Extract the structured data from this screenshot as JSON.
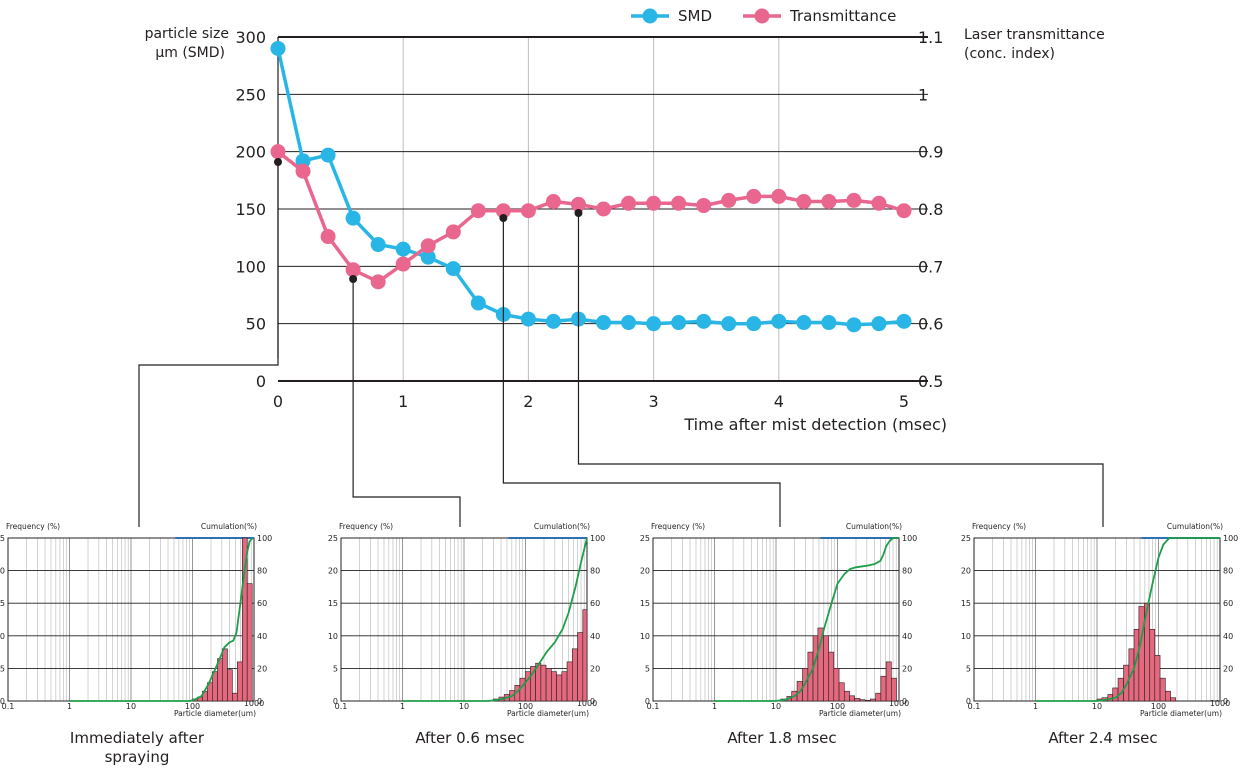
{
  "chart_data": [
    {
      "type": "line",
      "xlabel": "Time after mist detection (msec)",
      "ylabel": [
        "particle size",
        "µm (SMD)"
      ],
      "y2label": [
        "Laser transmittance",
        "(conc. index)"
      ],
      "xlim": [
        0,
        5
      ],
      "ylim": [
        0,
        300
      ],
      "y2lim": [
        0.5,
        1.1
      ],
      "xticks": [
        "0",
        "1",
        "2",
        "3",
        "4",
        "5"
      ],
      "yticks": [
        "0",
        "50",
        "100",
        "150",
        "200",
        "250",
        "300"
      ],
      "y2ticks": [
        "0.5",
        "0.6",
        "0.7",
        "0.8",
        "0.9",
        "1",
        "1.1"
      ],
      "grid": true,
      "legend_position": "top-right",
      "series": [
        {
          "name": "SMD",
          "axis": "left",
          "color": "#29b6e6",
          "x": [
            0,
            0.2,
            0.4,
            0.6,
            0.8,
            1.0,
            1.2,
            1.4,
            1.6,
            1.8,
            2.0,
            2.2,
            2.4,
            2.6,
            2.8,
            3.0,
            3.2,
            3.4,
            3.6,
            3.8,
            4.0,
            4.2,
            4.4,
            4.6,
            4.8,
            5.0
          ],
          "values": [
            290,
            192,
            197,
            142,
            119,
            115,
            108,
            98,
            68,
            58,
            54,
            52,
            54,
            51,
            51,
            50,
            51,
            52,
            50,
            50,
            52,
            51,
            51,
            49,
            50,
            52
          ]
        },
        {
          "name": "Transmittance",
          "axis": "right",
          "color": "#e9668e",
          "x": [
            0,
            0.2,
            0.4,
            0.6,
            0.8,
            1.0,
            1.2,
            1.4,
            1.6,
            1.8,
            2.0,
            2.2,
            2.4,
            2.6,
            2.8,
            3.0,
            3.2,
            3.4,
            3.6,
            3.8,
            4.0,
            4.2,
            4.4,
            4.6,
            4.8,
            5.0
          ],
          "values": [
            0.9,
            0.866,
            0.752,
            0.694,
            0.673,
            0.704,
            0.736,
            0.76,
            0.797,
            0.797,
            0.797,
            0.813,
            0.808,
            0.8,
            0.81,
            0.81,
            0.81,
            0.806,
            0.815,
            0.822,
            0.822,
            0.813,
            0.813,
            0.815,
            0.81,
            0.797
          ]
        }
      ],
      "markers": [
        {
          "x": 0,
          "target_panel": 0
        },
        {
          "x": 0.6,
          "target_panel": 1
        },
        {
          "x": 1.8,
          "target_panel": 2
        },
        {
          "x": 2.4,
          "target_panel": 3
        }
      ]
    },
    {
      "type": "bar",
      "panel": "Immediately after spraying",
      "caption": [
        "Immediately after",
        "spraying"
      ],
      "ylabel": "Frequency (%)",
      "y2label": "Cumulation(%)",
      "xlabel": "Particle diameter(um)",
      "xscale": "log",
      "xlim": [
        0.1,
        1000
      ],
      "ylim": [
        0,
        25
      ],
      "y2lim": [
        0,
        100
      ],
      "xticks": [
        "0.1",
        "1",
        "10",
        "100",
        "1000"
      ],
      "yticks": [
        "0",
        "5",
        "10",
        "15",
        "20",
        "25"
      ],
      "y2ticks": [
        "0",
        "20",
        "40",
        "60",
        "80",
        "100"
      ],
      "bar_color": "#e4687e",
      "curve_color": "#1e9e4a",
      "bar_edges": [
        100,
        120,
        145,
        175,
        210,
        255,
        305,
        370,
        445,
        535,
        645,
        775,
        935
      ],
      "values": [
        0.3,
        0.6,
        1.5,
        2.8,
        4.5,
        6.5,
        8.0,
        4.8,
        1.2,
        6.0,
        25.0,
        18.0
      ],
      "cumulative_x": [
        1,
        90,
        110,
        140,
        180,
        250,
        330,
        400,
        460,
        520,
        600,
        700,
        780,
        850,
        950
      ],
      "cumulative": [
        0,
        0,
        1,
        3,
        10,
        22,
        33,
        36,
        37,
        42,
        60,
        80,
        92,
        98,
        100
      ]
    },
    {
      "type": "bar",
      "panel": "After 0.6 msec",
      "caption": [
        "After 0.6 msec"
      ],
      "ylabel": "Frequency (%)",
      "y2label": "Cumulation(%)",
      "xlabel": "Particle diameter(um)",
      "xscale": "log",
      "xlim": [
        0.1,
        1000
      ],
      "ylim": [
        0,
        25
      ],
      "y2lim": [
        0,
        100
      ],
      "xticks": [
        "0.1",
        "1",
        "10",
        "100",
        "1000"
      ],
      "yticks": [
        "0",
        "5",
        "10",
        "15",
        "20",
        "25"
      ],
      "y2ticks": [
        "0",
        "20",
        "40",
        "60",
        "80",
        "100"
      ],
      "bar_color": "#e4687e",
      "curve_color": "#1e9e4a",
      "bar_edges": [
        30,
        37,
        45,
        55,
        67,
        81,
        99,
        120,
        146,
        178,
        216,
        263,
        320,
        390,
        474,
        577,
        702,
        855,
        1000
      ],
      "values": [
        0.3,
        0.6,
        1.0,
        1.6,
        2.4,
        3.5,
        4.5,
        5.3,
        5.8,
        5.5,
        5.0,
        4.5,
        4.0,
        4.5,
        6.0,
        8.0,
        10.5,
        14.0
      ],
      "cumulative_x": [
        1,
        25,
        40,
        60,
        80,
        120,
        160,
        220,
        300,
        400,
        500,
        650,
        800,
        1000
      ],
      "cumulative": [
        0,
        0,
        1,
        3,
        7,
        15,
        22,
        30,
        36,
        44,
        54,
        70,
        85,
        100
      ]
    },
    {
      "type": "bar",
      "panel": "After 1.8 msec",
      "caption": [
        "After 1.8 msec"
      ],
      "ylabel": "Frequency (%)",
      "y2label": "Cumulation(%)",
      "xlabel": "Particle diameter(um)",
      "xscale": "log",
      "xlim": [
        0.1,
        1000
      ],
      "ylim": [
        0,
        25
      ],
      "y2lim": [
        0,
        100
      ],
      "xticks": [
        "0.1",
        "1",
        "10",
        "100",
        "1000"
      ],
      "yticks": [
        "0",
        "5",
        "10",
        "15",
        "20",
        "25"
      ],
      "y2ticks": [
        "0",
        "20",
        "40",
        "60",
        "80",
        "100"
      ],
      "bar_color": "#e4687e",
      "curve_color": "#1e9e4a",
      "bar_edges": [
        12,
        15,
        18,
        22,
        27,
        33,
        40,
        48,
        59,
        72,
        87,
        106,
        129,
        157,
        190,
        232,
        282,
        343,
        417,
        507,
        617,
        750,
        912
      ],
      "values": [
        0.3,
        0.7,
        1.5,
        3.0,
        5.0,
        7.5,
        10.0,
        11.2,
        10.0,
        7.5,
        5.0,
        2.8,
        1.5,
        0.8,
        0.4,
        0.2,
        0.1,
        0.3,
        1.2,
        3.8,
        6.0,
        3.5
      ],
      "cumulative_x": [
        1,
        10,
        15,
        20,
        25,
        30,
        40,
        50,
        60,
        80,
        100,
        130,
        160,
        200,
        300,
        400,
        500,
        560,
        620,
        700,
        800,
        1000
      ],
      "cumulative": [
        0,
        0,
        1,
        3,
        6,
        11,
        20,
        32,
        44,
        60,
        72,
        78,
        81,
        82,
        83,
        84,
        86,
        90,
        95,
        98,
        100,
        100
      ]
    },
    {
      "type": "bar",
      "panel": "After 2.4 msec",
      "caption": [
        "After 2.4 msec"
      ],
      "ylabel": "Frequency (%)",
      "y2label": "Cumulation(%)",
      "xlabel": "Particle diameter(um)",
      "xscale": "log",
      "xlim": [
        0.1,
        1000
      ],
      "ylim": [
        0,
        25
      ],
      "y2lim": [
        0,
        100
      ],
      "xticks": [
        "0.1",
        "1",
        "10",
        "100",
        "1000"
      ],
      "yticks": [
        "0",
        "5",
        "10",
        "15",
        "20",
        "25"
      ],
      "y2ticks": [
        "0",
        "20",
        "40",
        "60",
        "80",
        "100"
      ],
      "bar_color": "#e4687e",
      "curve_color": "#1e9e4a",
      "bar_edges": [
        10,
        12,
        15,
        18,
        22,
        27,
        33,
        40,
        48,
        59,
        72,
        87,
        106,
        129,
        157,
        190
      ],
      "values": [
        0.3,
        0.5,
        1.0,
        2.0,
        3.5,
        5.5,
        8.0,
        11.0,
        14.5,
        15.0,
        11.0,
        7.0,
        3.5,
        1.5,
        0.5
      ],
      "cumulative_x": [
        1,
        10,
        15,
        20,
        25,
        30,
        40,
        50,
        60,
        80,
        100,
        120,
        150,
        1000
      ],
      "cumulative": [
        0,
        0,
        1,
        2,
        5,
        10,
        20,
        34,
        50,
        72,
        88,
        96,
        100,
        100
      ]
    }
  ]
}
